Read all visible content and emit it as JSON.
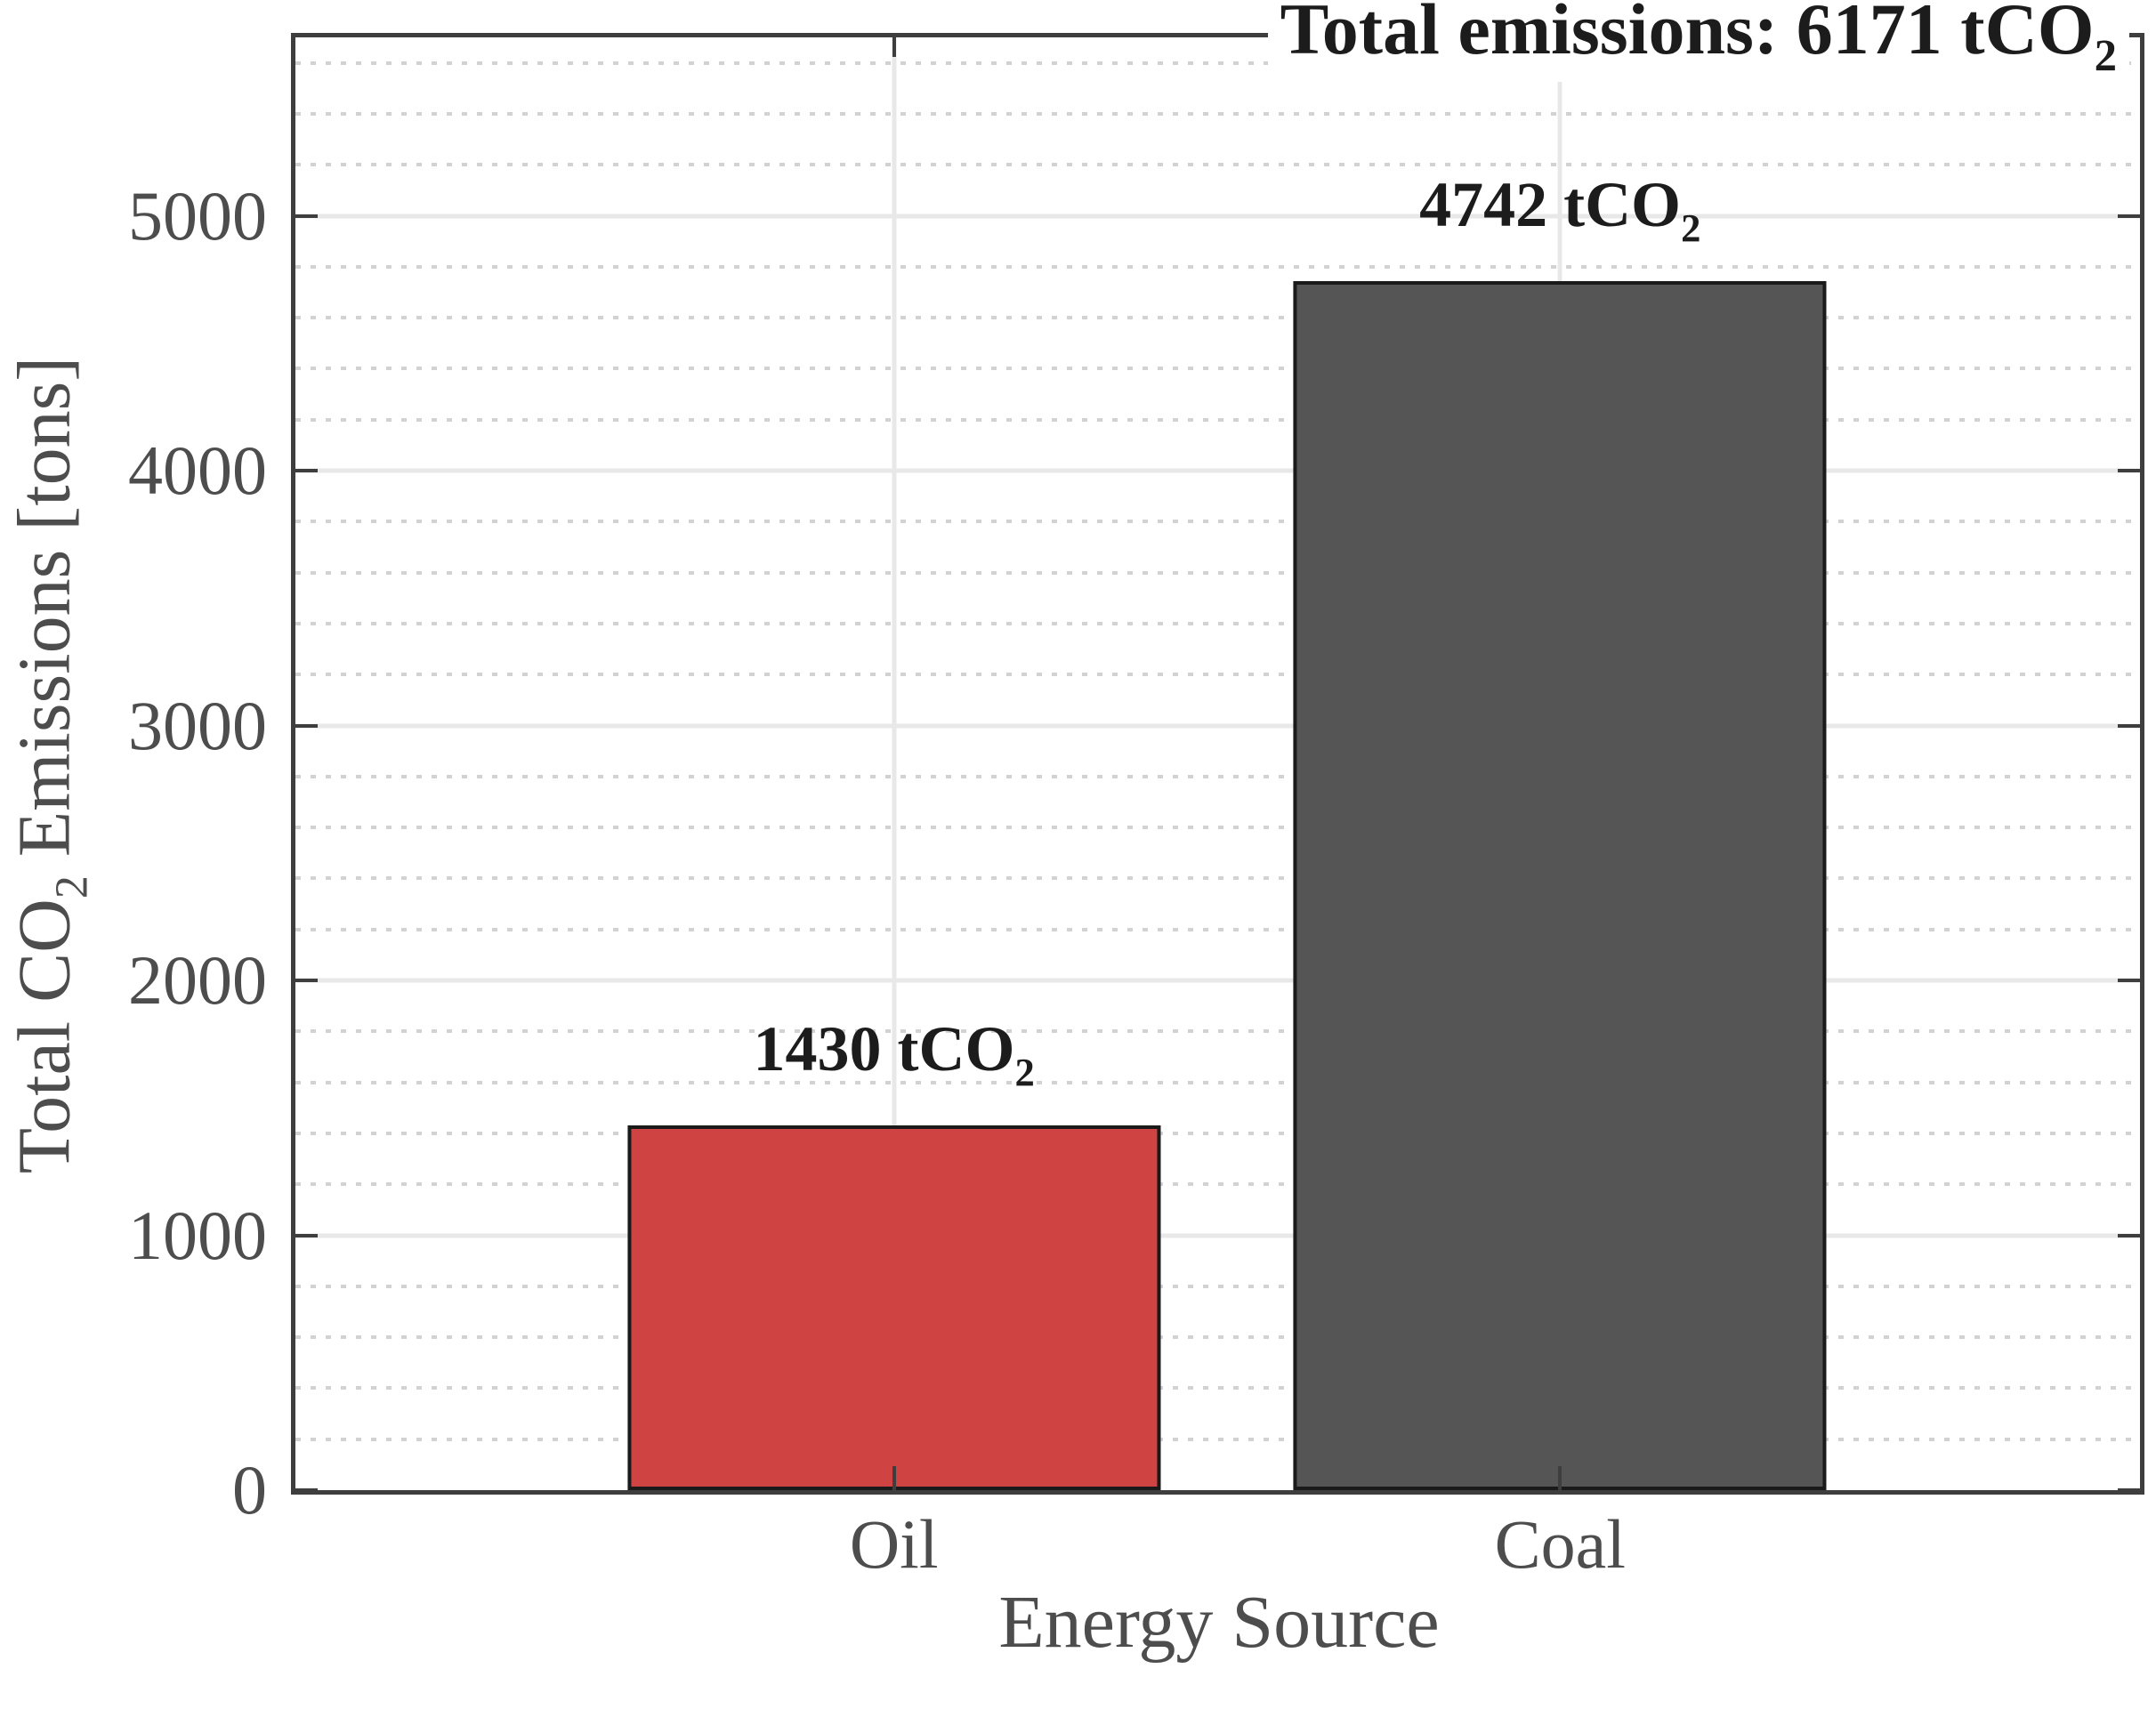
{
  "chart_data": {
    "type": "bar",
    "title": "Total emissions: 6171 tCO2",
    "title_parts": {
      "main": "Total emissions: 6171 tCO",
      "sub": "2"
    },
    "total_emissions": 6171,
    "categories": [
      "Oil",
      "Coal"
    ],
    "values": [
      1430,
      4742
    ],
    "bar_labels": [
      {
        "main": "1430 tCO",
        "sub": "2"
      },
      {
        "main": "4742 tCO",
        "sub": "2"
      }
    ],
    "bar_colors": [
      "#D04343",
      "#555555"
    ],
    "bar_edge_color": "#1A1A1A",
    "xlabel": "Energy Source",
    "ylabel": "Total CO2 Emissions [tons]",
    "ylabel_parts": {
      "pre": "Total CO",
      "sub": "2",
      "post": " Emissions [tons]"
    },
    "ylim": [
      0,
      5700
    ],
    "yticks": [
      0,
      1000,
      2000,
      3000,
      4000,
      5000
    ],
    "y_minor_step": 200,
    "grid": {
      "major_on": true,
      "minor_on": true,
      "major_color": "#E8E8E8",
      "minor_color": "#D2D2D2",
      "legend_position": "none"
    },
    "axis_color": "#3E3E3E",
    "tick_label_color": "#4D4D4D",
    "text_color": "#1C1C1C",
    "bar_center_fractions": [
      0.3245,
      0.6856
    ],
    "bar_width_fraction": 0.289
  }
}
